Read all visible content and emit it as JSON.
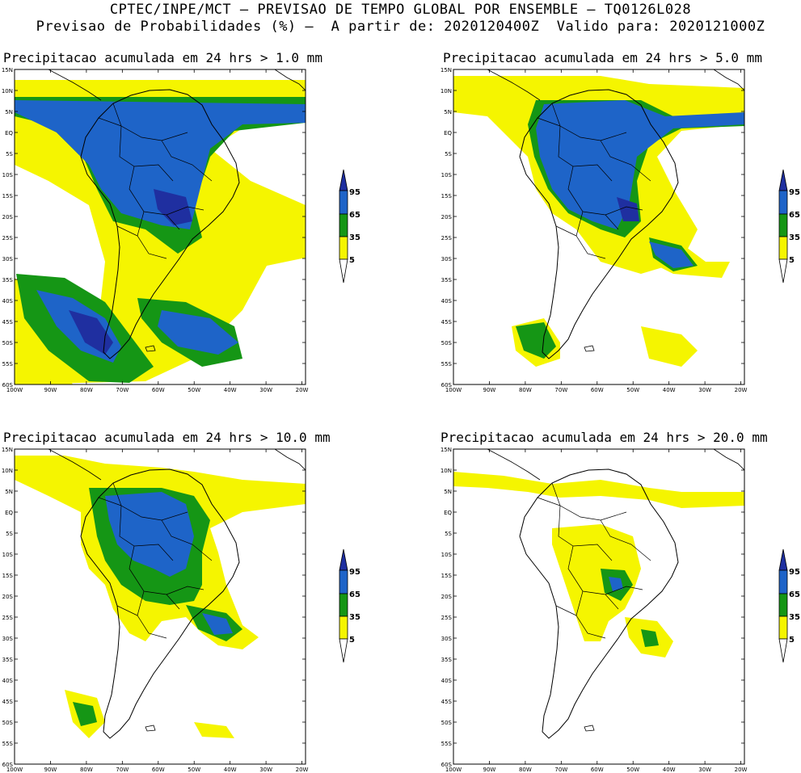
{
  "header": {
    "line1": "CPTEC/INPE/MCT — PREVISAO DE TEMPO GLOBAL POR ENSEMBLE — TQ0126L028",
    "line2": "Previsao de Probabilidades (%) —  A partir de: 2020120400Z  Valido para: 2020121000Z"
  },
  "panels": [
    {
      "title": "Precipitacao acumulada em 24 hrs > 1.0 mm"
    },
    {
      "title": "Precipitacao acumulada em 24 hrs > 5.0 mm"
    },
    {
      "title": "Precipitacao acumulada em 24 hrs > 10.0 mm"
    },
    {
      "title": "Precipitacao acumulada em 24 hrs > 20.0 mm"
    }
  ],
  "lat_labels": [
    "15N",
    "10N",
    "5N",
    "EQ",
    "5S",
    "10S",
    "15S",
    "20S",
    "25S",
    "30S",
    "35S",
    "40S",
    "45S",
    "50S",
    "55S",
    "60S"
  ],
  "lon_labels": [
    "100W",
    "90W",
    "80W",
    "70W",
    "60W",
    "50W",
    "40W",
    "30W",
    "20W"
  ],
  "colorbar": {
    "levels": [
      "95",
      "65",
      "35",
      "5"
    ],
    "colors": [
      "#1f2fa0",
      "#1e64c8",
      "#159615",
      "#f5f500"
    ]
  }
}
